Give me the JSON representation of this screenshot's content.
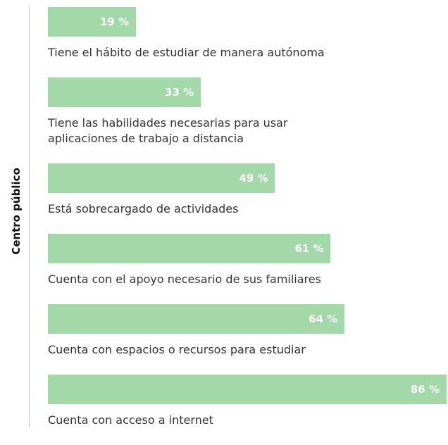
{
  "chart_data": {
    "type": "bar",
    "orientation": "horizontal",
    "y_label": "Centro público",
    "categories": [
      "Tiene el hábito de estudiar de manera autónoma",
      "Tiene las habilidades necesarias para usar\naplicaciones de trabajo a distancia",
      "Está sobrecargado de actividades",
      "Cuenta con el apoyo necesario de sus familiares",
      "Cuenta con espacios o recursos para estudiar",
      "Cuenta con acceso a internet"
    ],
    "values": [
      19,
      33,
      49,
      61,
      64,
      86
    ],
    "value_labels": [
      "19 %",
      "33 %",
      "49 %",
      "61 %",
      "64 %",
      "86 %"
    ],
    "color": "#a3d9a8"
  }
}
